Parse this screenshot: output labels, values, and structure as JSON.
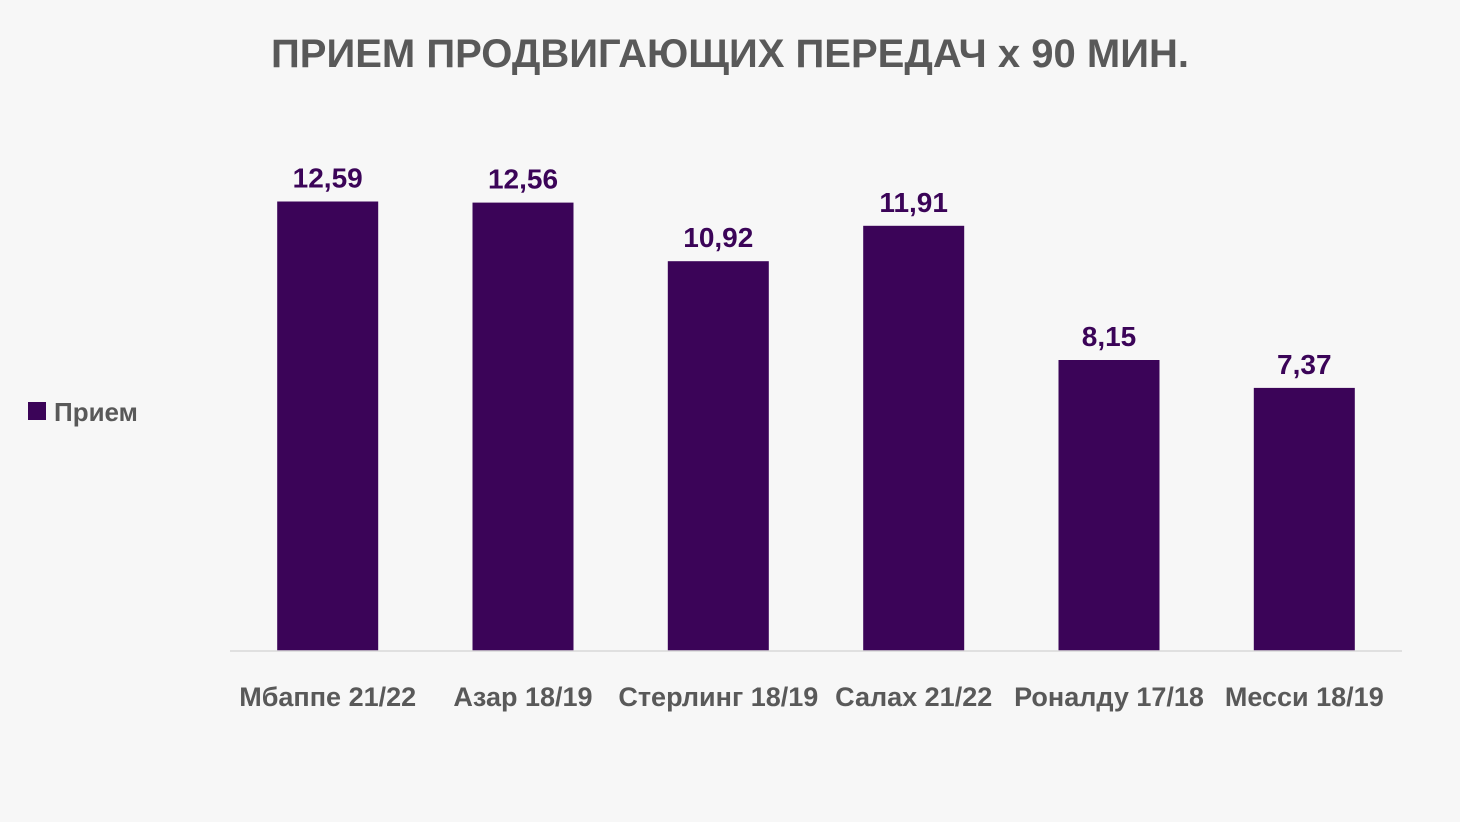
{
  "chart_data": {
    "type": "bar",
    "title": "ПРИЕМ ПРОДВИГАЮЩИХ ПЕРЕДАЧ х 90 МИН.",
    "categories": [
      "Мбаппе 21/22",
      "Азар 18/19",
      "Стерлинг 18/19",
      "Салах 21/22",
      "Роналду 17/18",
      "Месси 18/19"
    ],
    "series": [
      {
        "name": "Прием",
        "values": [
          12.59,
          12.56,
          10.92,
          11.91,
          8.15,
          7.37
        ],
        "labels": [
          "12,59",
          "12,56",
          "10,92",
          "11,91",
          "8,15",
          "7,37"
        ],
        "color": "#3b0458"
      }
    ],
    "ylim": [
      0,
      14
    ],
    "grid": false,
    "legend_position": "left",
    "colors": {
      "background": "#f7f7f7",
      "text": "#595959",
      "bar": "#3b0458",
      "axis": "#d9d9d9"
    }
  }
}
